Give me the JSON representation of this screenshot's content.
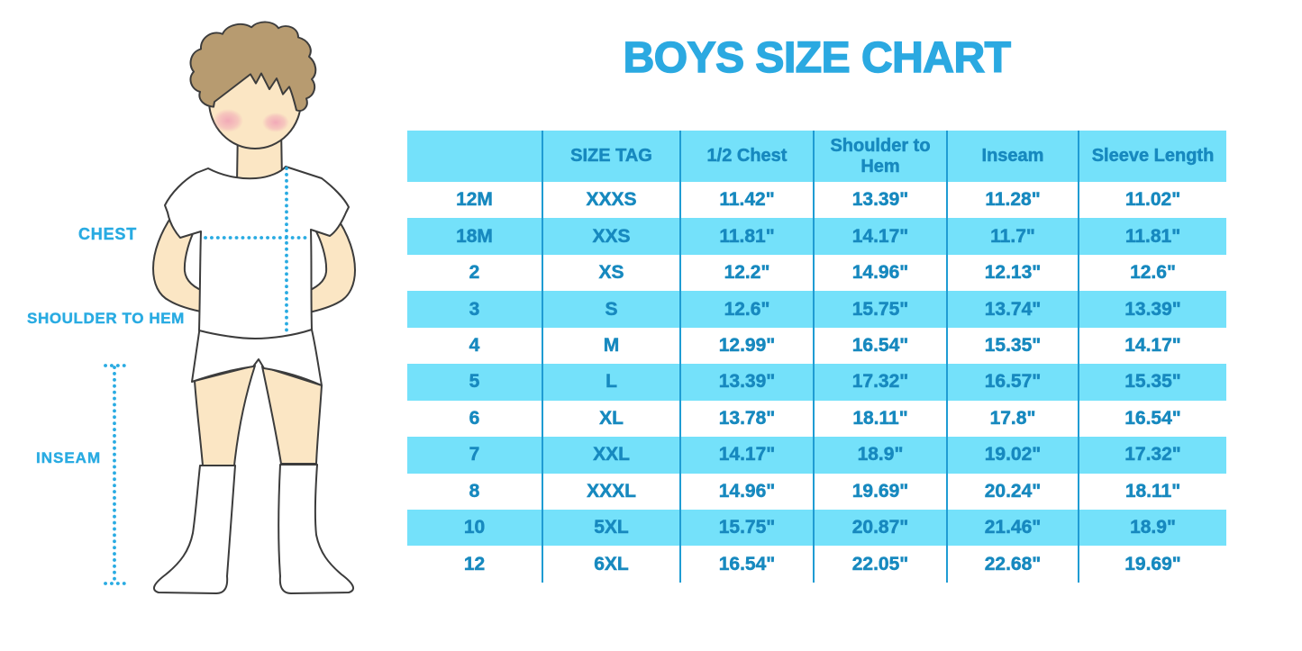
{
  "title": "BOYS SIZE CHART",
  "colors": {
    "accent_title": "#2BA9E1",
    "stripe_cyan": "#74E1FA",
    "column_line": "#1F9CD3",
    "table_text": "#1789BF",
    "label_blue": "#29ABE2"
  },
  "figure": {
    "labels": {
      "chest": "CHEST",
      "shoulder_to_hem": "SHOULDER TO HEM",
      "inseam": "INSEAM"
    }
  },
  "chart_data": {
    "type": "table",
    "title": "BOYS SIZE CHART",
    "headers": [
      "",
      "SIZE TAG",
      "1/2 Chest",
      "Shoulder to Hem",
      "Inseam",
      "Sleeve Length"
    ],
    "rows": [
      [
        "12M",
        "XXXS",
        "11.42\"",
        "13.39\"",
        "11.28\"",
        "11.02\""
      ],
      [
        "18M",
        "XXS",
        "11.81\"",
        "14.17\"",
        "11.7\"",
        "11.81\""
      ],
      [
        "2",
        "XS",
        "12.2\"",
        "14.96\"",
        "12.13\"",
        "12.6\""
      ],
      [
        "3",
        "S",
        "12.6\"",
        "15.75\"",
        "13.74\"",
        "13.39\""
      ],
      [
        "4",
        "M",
        "12.99\"",
        "16.54\"",
        "15.35\"",
        "14.17\""
      ],
      [
        "5",
        "L",
        "13.39\"",
        "17.32\"",
        "16.57\"",
        "15.35\""
      ],
      [
        "6",
        "XL",
        "13.78\"",
        "18.11\"",
        "17.8\"",
        "16.54\""
      ],
      [
        "7",
        "XXL",
        "14.17\"",
        "18.9\"",
        "19.02\"",
        "17.32\""
      ],
      [
        "8",
        "XXXL",
        "14.96\"",
        "19.69\"",
        "20.24\"",
        "18.11\""
      ],
      [
        "10",
        "5XL",
        "15.75\"",
        "20.87\"",
        "21.46\"",
        "18.9\""
      ],
      [
        "12",
        "6XL",
        "16.54\"",
        "22.05\"",
        "22.68\"",
        "19.69\""
      ]
    ]
  }
}
